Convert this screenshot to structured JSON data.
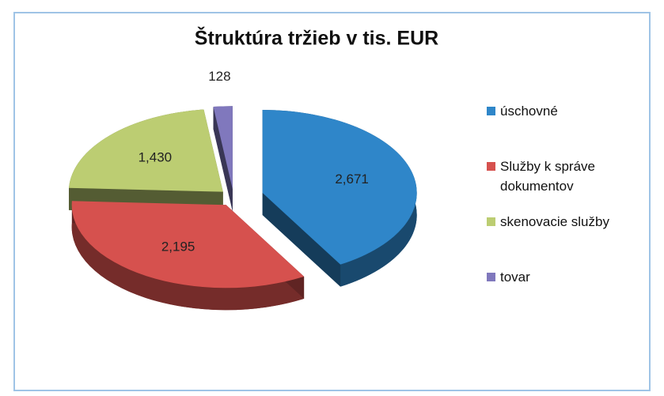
{
  "chart_data": {
    "type": "pie",
    "title": "Štruktúra tržieb v tis. EUR",
    "categories": [
      "úschovné",
      "Služby k správe dokumentov",
      "skenovacie služby",
      "tovar"
    ],
    "values": [
      2671,
      2195,
      1430,
      128
    ],
    "value_labels": [
      "2,671",
      "2,195",
      "1,430",
      "128"
    ],
    "colors": [
      "#2f86c9",
      "#d6514e",
      "#bccd72",
      "#8078bd"
    ],
    "legend": "right"
  }
}
